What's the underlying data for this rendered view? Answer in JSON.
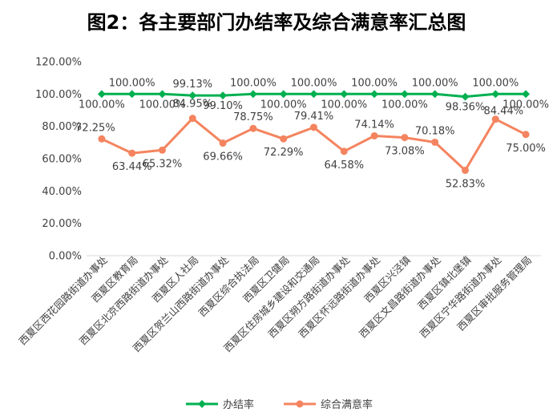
{
  "chart_data": {
    "type": "line",
    "title": "图2：各主要部门办结率及综合满意率汇总图",
    "categories": [
      "西夏区西花园路街道办事处",
      "西夏区教育局",
      "西夏区北京西路街道办事处",
      "西夏区人社局",
      "西夏区贺兰山西路街道办事处",
      "西夏区综合执法局",
      "西夏区卫健局",
      "西夏区住房城乡建设和交通局",
      "西夏区朔方路街道办事处",
      "西夏区怀远路街道办事处",
      "西夏区兴泾镇",
      "西夏区文昌路街道办事处",
      "西夏区镇北堡镇",
      "西夏区宁华路街道办事处",
      "西夏区审批服务管理局"
    ],
    "series": [
      {
        "name": "办结率",
        "color": "#00B050",
        "values": [
          100.0,
          100.0,
          100.0,
          99.13,
          99.1,
          100.0,
          100.0,
          100.0,
          100.0,
          100.0,
          100.0,
          100.0,
          98.36,
          100.0,
          100.0
        ],
        "labels": [
          "100.00%",
          "100.00%",
          "100.00%",
          "99.13%",
          "99.10%",
          "100.00%",
          "100.00%",
          "100.00%",
          "100.00%",
          "100.00%",
          "100.00%",
          "100.00%",
          "98.36%",
          "100.00%",
          "100.00%"
        ]
      },
      {
        "name": "综合满意率",
        "color": "#F4845F",
        "values": [
          72.25,
          63.44,
          65.32,
          84.95,
          69.66,
          78.75,
          72.29,
          79.41,
          64.58,
          74.14,
          73.08,
          70.18,
          52.83,
          84.44,
          75.0
        ],
        "labels": [
          "72.25%",
          "63.44%",
          "65.32%",
          "84.95%",
          "69.66%",
          "78.75%",
          "72.29%",
          "79.41%",
          "64.58%",
          "74.14%",
          "73.08%",
          "70.18%",
          "52.83%",
          "84.44%",
          "75.00%"
        ]
      }
    ],
    "ylim": [
      0,
      120
    ],
    "yticks": [
      "0.00%",
      "20.00%",
      "40.00%",
      "60.00%",
      "80.00%",
      "100.00%",
      "120.00%"
    ],
    "grid": false,
    "legend": "bottom"
  }
}
